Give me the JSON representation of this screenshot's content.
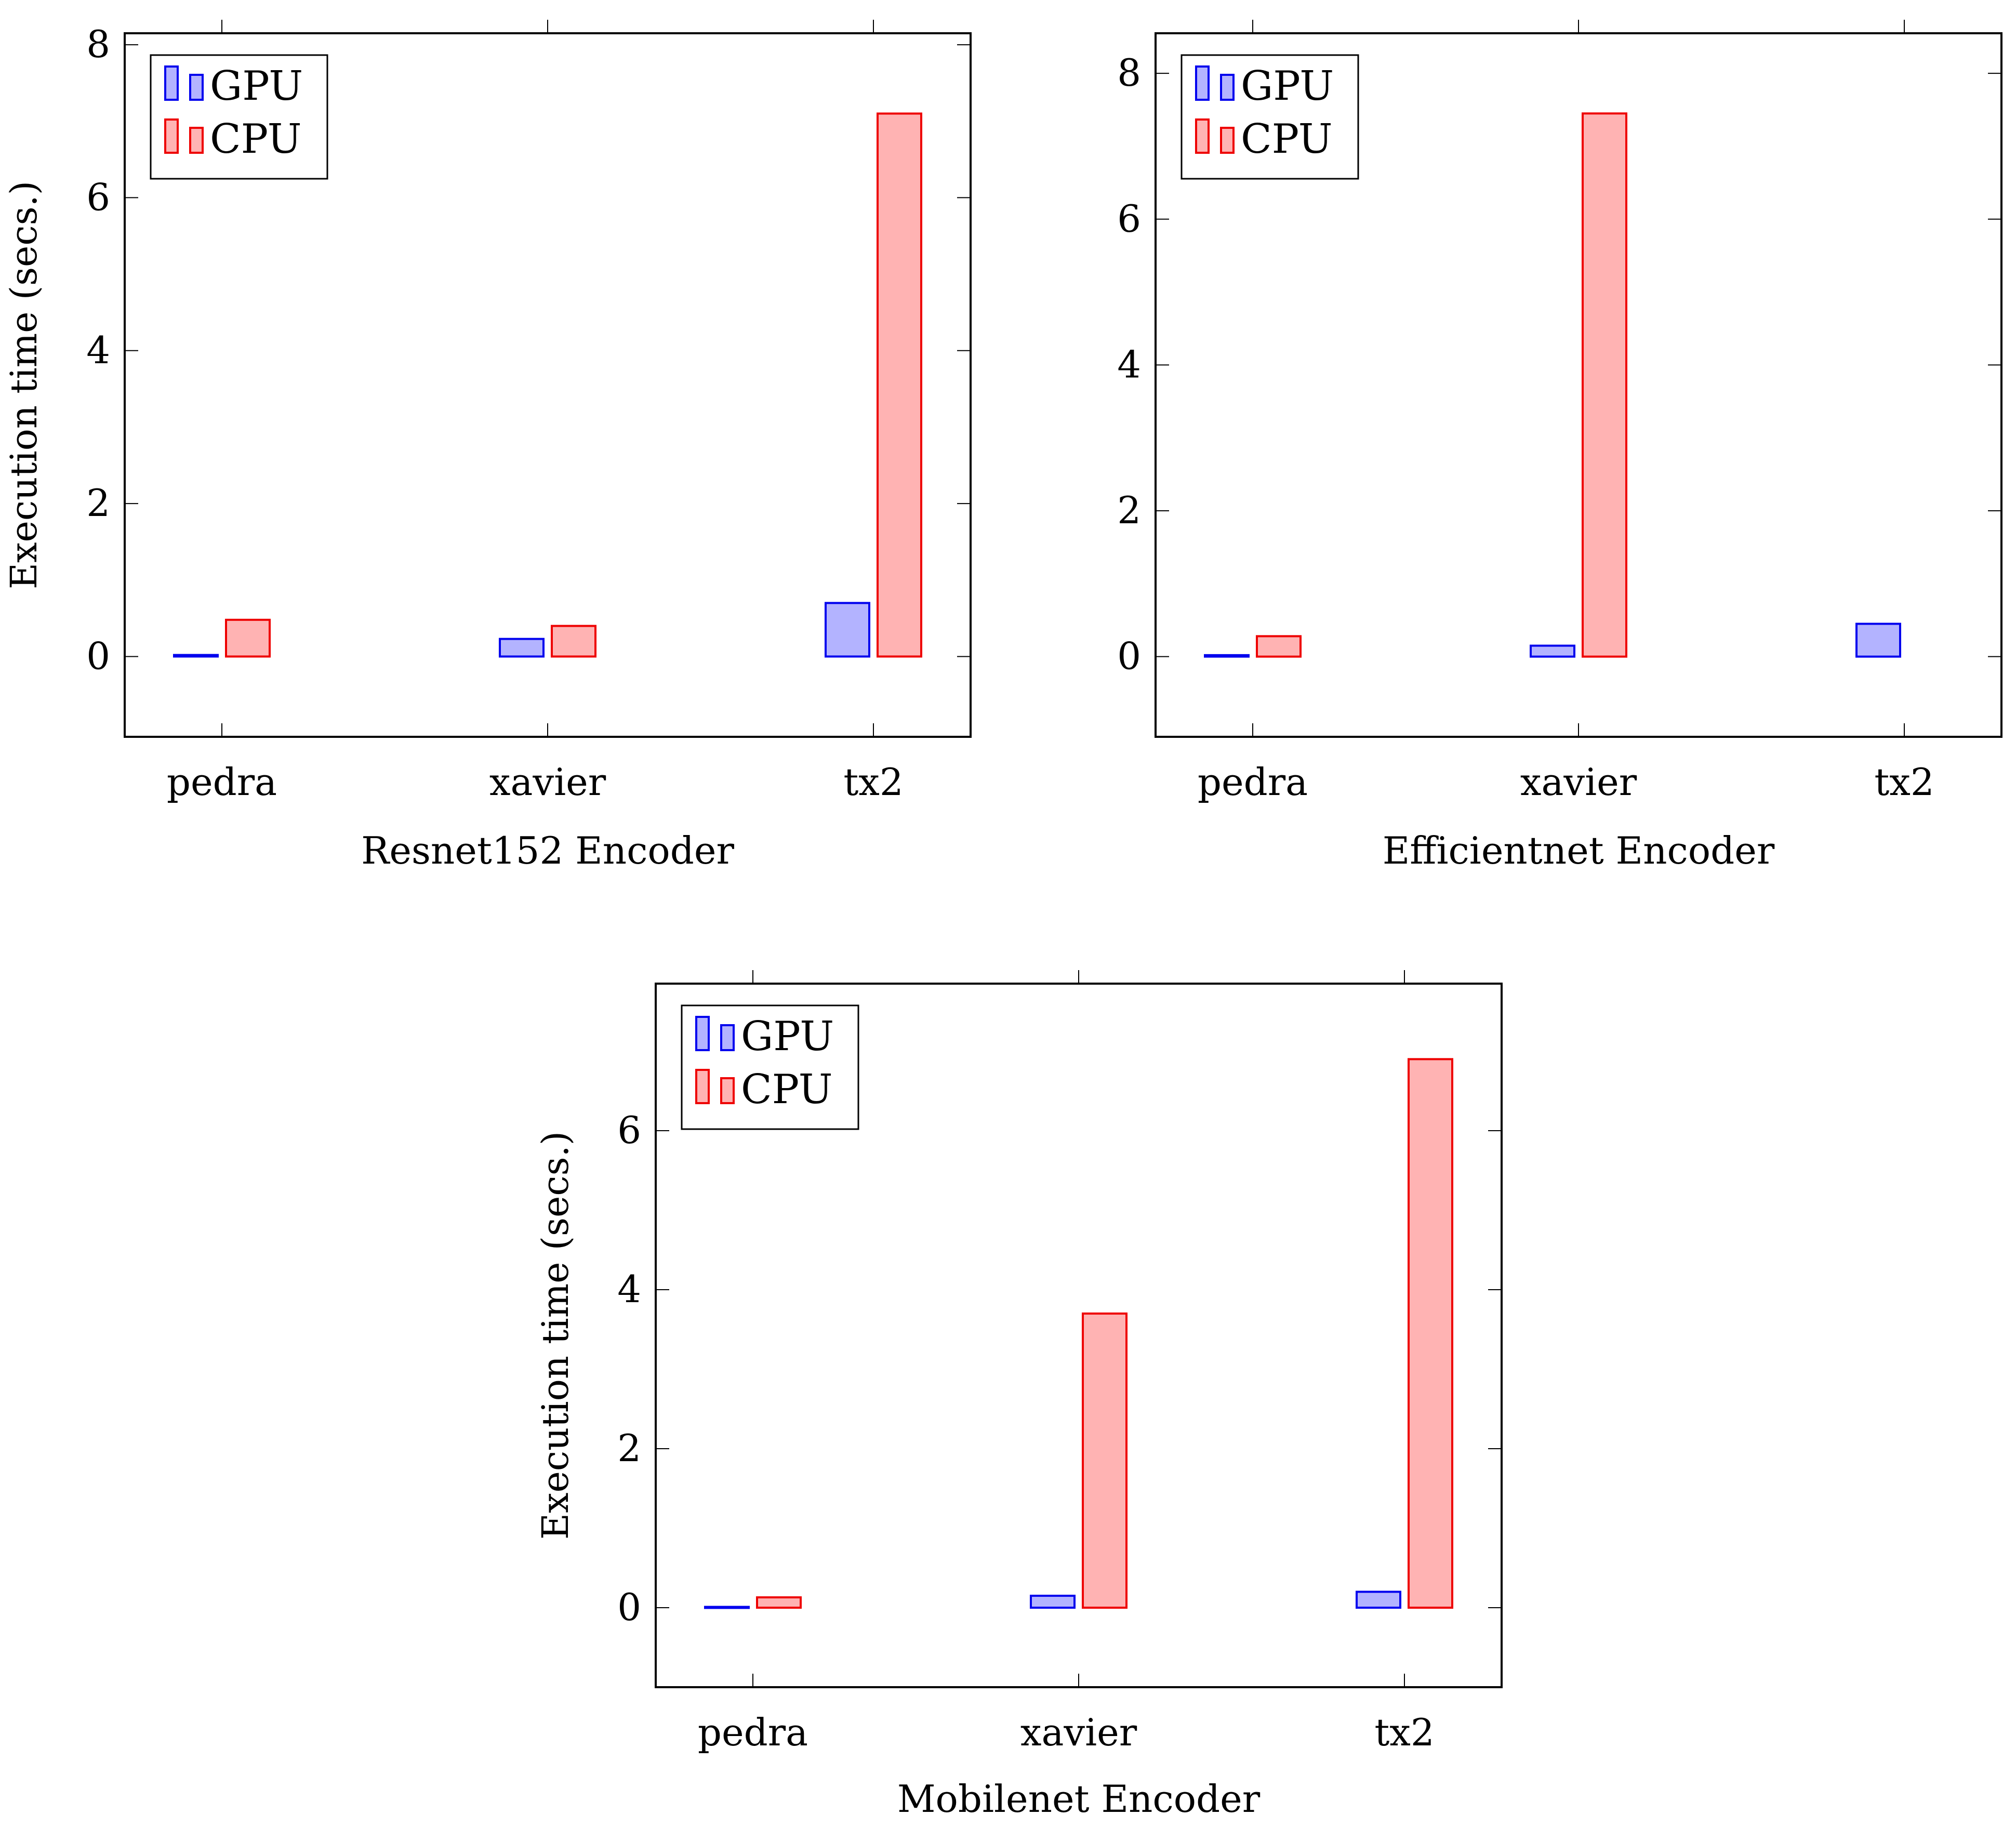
{
  "chart_data": [
    {
      "type": "bar",
      "xlabel": "Resnet152 Encoder",
      "ylabel": "Execution time (secs.)",
      "categories": [
        "pedra",
        "xavier",
        "tx2"
      ],
      "ylim": [
        -1.05,
        8.15
      ],
      "yticks": [
        0,
        2,
        4,
        6,
        8
      ],
      "ytick_labels": [
        "0",
        "2",
        "4",
        "6",
        "8"
      ],
      "legend": "top-left",
      "series": [
        {
          "name": "GPU",
          "color": "#0000ee",
          "fill": "#b3b3ff",
          "values": [
            0.02,
            0.23,
            0.7
          ]
        },
        {
          "name": "CPU",
          "color": "#ee0000",
          "fill": "#ffb3b3",
          "values": [
            0.48,
            0.4,
            7.1
          ]
        }
      ]
    },
    {
      "type": "bar",
      "xlabel": "Efficientnet Encoder",
      "ylabel": "",
      "categories": [
        "pedra",
        "xavier",
        "tx2"
      ],
      "ylim": [
        -1.1,
        8.55
      ],
      "yticks": [
        0,
        2,
        4,
        6,
        8
      ],
      "ytick_labels": [
        "0",
        "2",
        "4",
        "6",
        "8"
      ],
      "legend": "top-left",
      "series": [
        {
          "name": "GPU",
          "color": "#0000ee",
          "fill": "#b3b3ff",
          "values": [
            0.02,
            0.15,
            0.45
          ]
        },
        {
          "name": "CPU",
          "color": "#ee0000",
          "fill": "#ffb3b3",
          "values": [
            0.28,
            7.45,
            null
          ]
        }
      ]
    },
    {
      "type": "bar",
      "xlabel": "Mobilenet Encoder",
      "ylabel": "Execution time (secs.)",
      "categories": [
        "pedra",
        "xavier",
        "tx2"
      ],
      "ylim": [
        -1.0,
        7.85
      ],
      "yticks": [
        0,
        2,
        4,
        6
      ],
      "ytick_labels": [
        "0",
        "2",
        "4",
        "6"
      ],
      "legend": "top-left",
      "series": [
        {
          "name": "GPU",
          "color": "#0000ee",
          "fill": "#b3b3ff",
          "values": [
            0.01,
            0.15,
            0.2
          ]
        },
        {
          "name": "CPU",
          "color": "#ee0000",
          "fill": "#ffb3b3",
          "values": [
            0.13,
            3.7,
            6.9
          ]
        }
      ]
    }
  ]
}
